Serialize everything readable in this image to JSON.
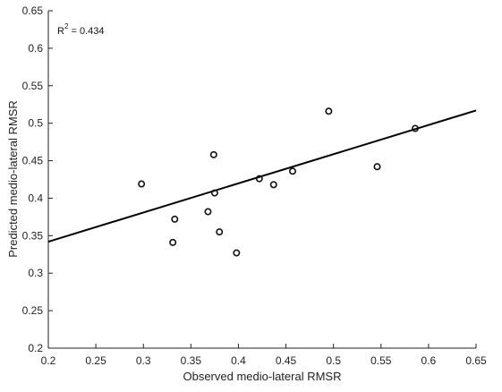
{
  "chart_data": {
    "type": "scatter",
    "title": "",
    "xlabel": "Observed medio-lateral RMSR",
    "ylabel": "Predicted medio-lateral RMSR",
    "xlim": [
      0.2,
      0.65
    ],
    "ylim": [
      0.2,
      0.65
    ],
    "xticks": [
      "0.2",
      "0.25",
      "0.3",
      "0.35",
      "0.4",
      "0.45",
      "0.5",
      "0.55",
      "0.6",
      "0.65"
    ],
    "yticks": [
      "0.2",
      "0.25",
      "0.3",
      "0.35",
      "0.4",
      "0.45",
      "0.5",
      "0.55",
      "0.6",
      "0.65"
    ],
    "grid": false,
    "annotation": {
      "label_main": "R",
      "label_sup": "2",
      "label_value": " = 0.434"
    },
    "series": [
      {
        "points": [
          {
            "x": 0.298,
            "y": 0.419
          },
          {
            "x": 0.331,
            "y": 0.341
          },
          {
            "x": 0.333,
            "y": 0.372
          },
          {
            "x": 0.368,
            "y": 0.382
          },
          {
            "x": 0.374,
            "y": 0.458
          },
          {
            "x": 0.375,
            "y": 0.407
          },
          {
            "x": 0.38,
            "y": 0.355
          },
          {
            "x": 0.398,
            "y": 0.327
          },
          {
            "x": 0.422,
            "y": 0.426
          },
          {
            "x": 0.437,
            "y": 0.418
          },
          {
            "x": 0.457,
            "y": 0.436
          },
          {
            "x": 0.495,
            "y": 0.516
          },
          {
            "x": 0.546,
            "y": 0.442
          },
          {
            "x": 0.586,
            "y": 0.493
          }
        ]
      }
    ],
    "fit_line": {
      "x": [
        0.2,
        0.65
      ],
      "y": [
        0.342,
        0.517
      ]
    },
    "colors": {
      "axis": "#222222",
      "marker": "#111111",
      "line": "#000000",
      "background": "#ffffff"
    }
  }
}
